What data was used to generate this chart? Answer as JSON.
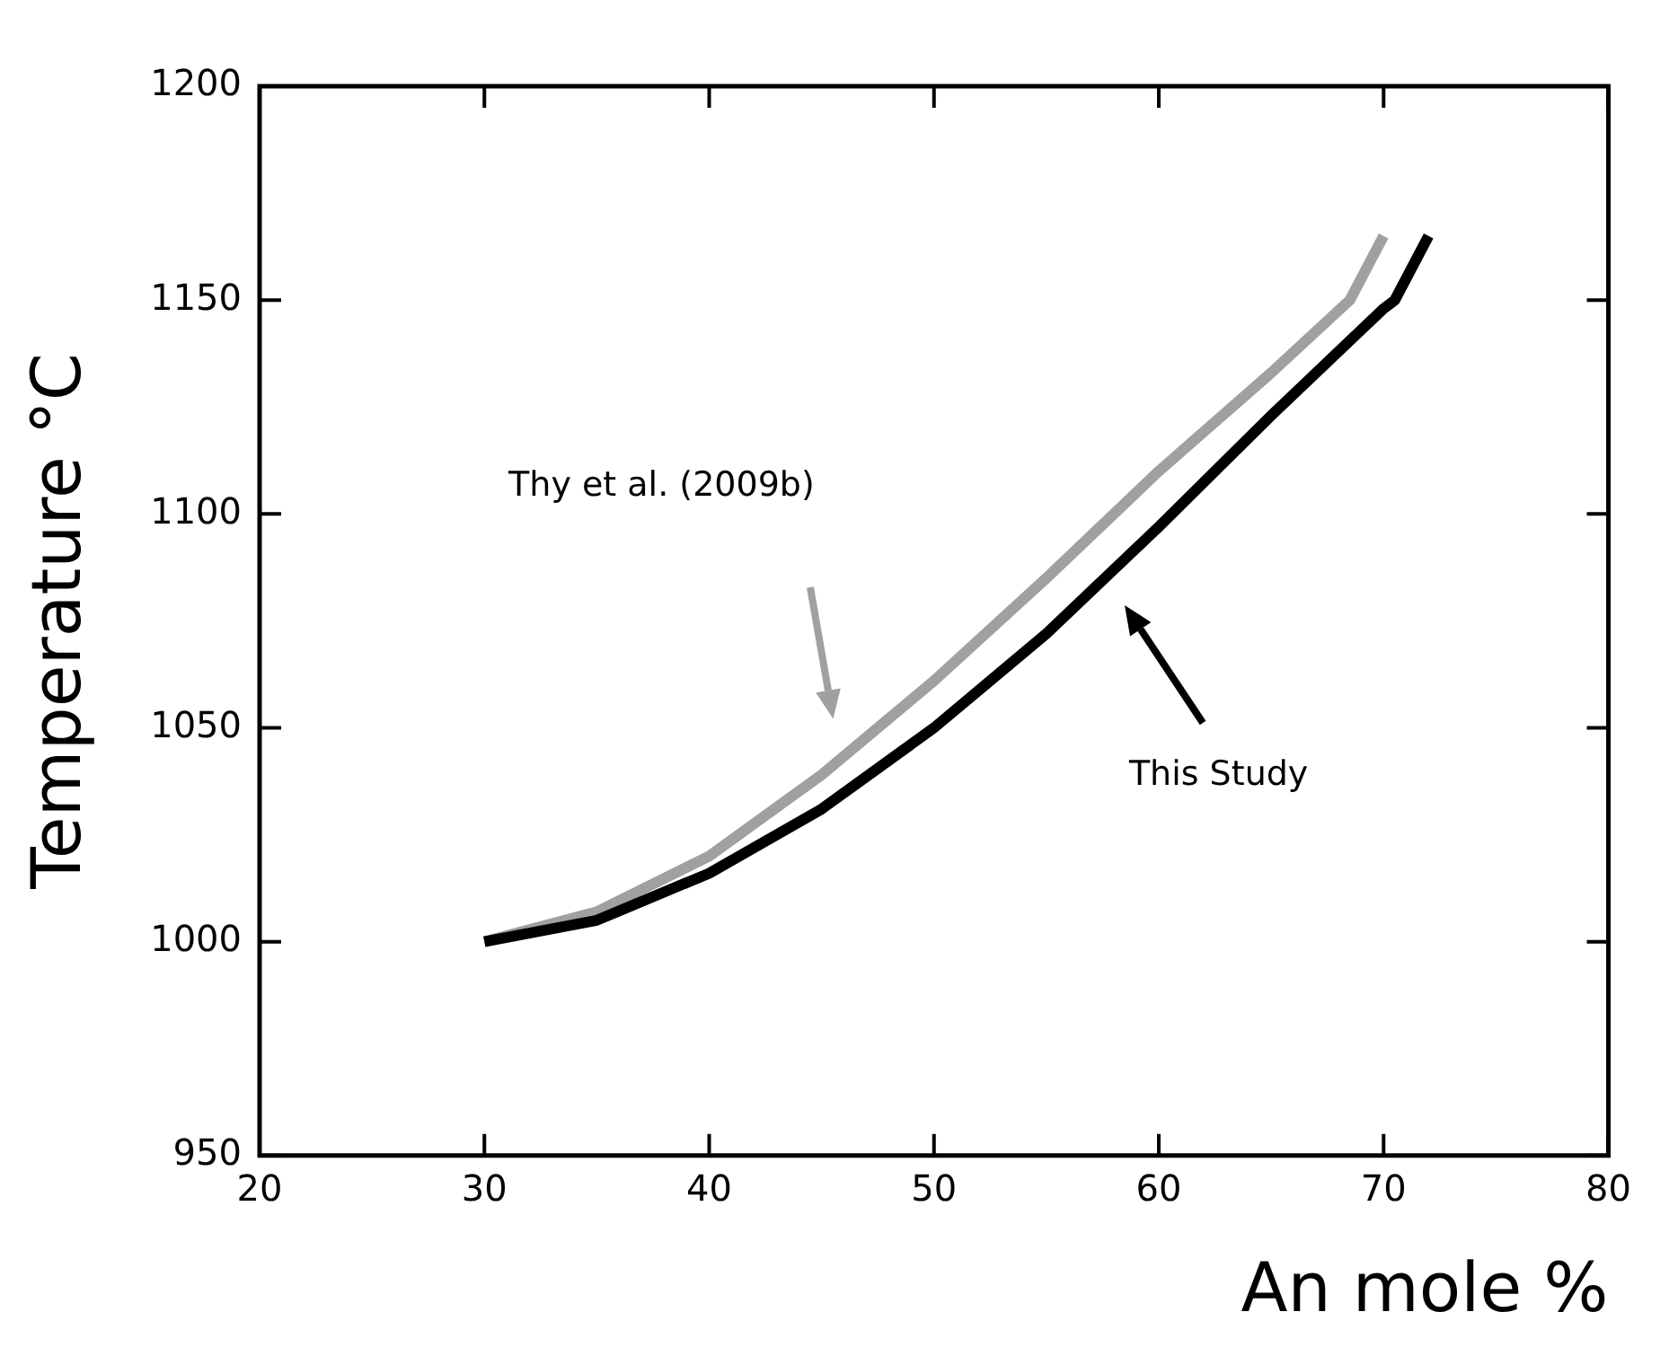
{
  "chart_data": {
    "type": "line",
    "xlabel": "An mole %",
    "ylabel": "Temperature °C",
    "series": [
      {
        "color": "#000000",
        "x": [
          30,
          35,
          40,
          45,
          50,
          55,
          60,
          65,
          70,
          70.5,
          72
        ],
        "values": [
          1000,
          1005,
          1016,
          1031,
          1050,
          1072,
          1097,
          1123,
          1148,
          1150,
          1165
        ]
      },
      {
        "color": "#a0a0a0",
        "x": [
          30,
          35,
          40,
          45,
          50,
          55,
          60,
          65,
          68.5,
          70
        ],
        "values": [
          1000,
          1007,
          1020,
          1039,
          1061,
          1085,
          1110,
          1133,
          1150,
          1165
        ]
      }
    ],
    "annotations": [
      "This Study",
      "Thy et al. (2009b)"
    ],
    "xlim": [
      20,
      80
    ],
    "xticks": [
      20,
      30,
      40,
      50,
      60,
      70,
      80
    ],
    "ylim": [
      950,
      1200
    ],
    "yticks": [
      950,
      1000,
      1050,
      1100,
      1150,
      1200
    ],
    "grid": false,
    "legend": false,
    "marker": "none",
    "line_style": "solid"
  }
}
